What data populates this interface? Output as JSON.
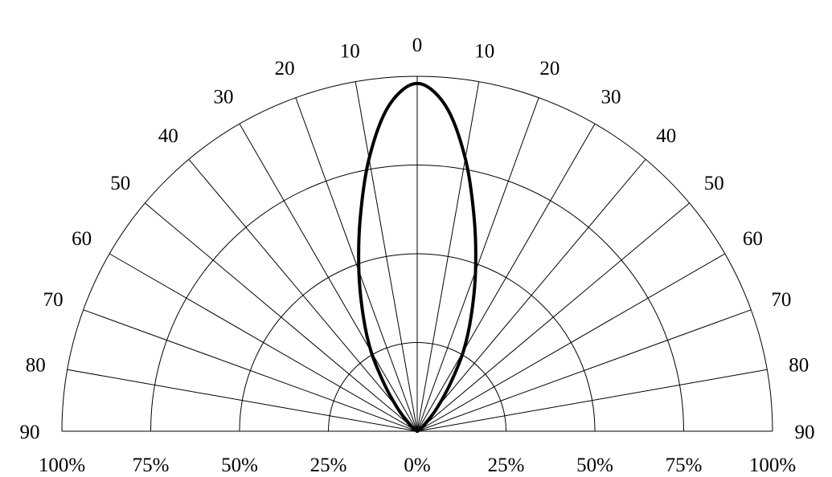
{
  "chart_data": {
    "type": "polar",
    "angle_ticks_left": [
      "0",
      "10",
      "20",
      "30",
      "40",
      "50",
      "60",
      "70",
      "80",
      "90"
    ],
    "angle_ticks_right": [
      "10",
      "20",
      "30",
      "40",
      "50",
      "60",
      "70",
      "80",
      "90"
    ],
    "radial_ticks": [
      "100%",
      "75%",
      "50%",
      "25%",
      "0%",
      "25%",
      "50%",
      "75%",
      "100%"
    ],
    "angle_range_deg": [
      -90,
      90
    ],
    "radial_range": [
      0,
      100
    ],
    "grid_angle_step_deg": 10,
    "grid_radii": [
      25,
      50,
      75,
      100
    ],
    "grid": true,
    "series": [
      {
        "angles_deg": [
          -90,
          -80,
          -70,
          -60,
          -50,
          -45,
          -40,
          -35,
          -30,
          -25,
          -20,
          -15,
          -10,
          -5,
          0,
          5,
          10,
          15,
          20,
          25,
          30,
          35,
          40,
          45,
          50,
          60,
          70,
          80,
          90
        ],
        "values": [
          0,
          0,
          0,
          0.5,
          2,
          4.5,
          9,
          16,
          26,
          36,
          48,
          62,
          78,
          92,
          98,
          92,
          78,
          62,
          48,
          36,
          26,
          16,
          9,
          4.5,
          2,
          0.5,
          0,
          0,
          0
        ],
        "color": "#000000"
      }
    ]
  }
}
